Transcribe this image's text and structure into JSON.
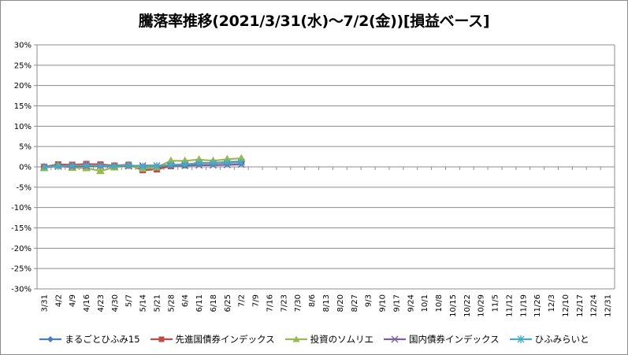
{
  "chart_data": {
    "type": "line",
    "title": "騰落率推移(2021/3/31(水)～7/2(金))[損益ベース]",
    "y_ticks": [
      "30%",
      "25%",
      "20%",
      "15%",
      "10%",
      "5%",
      "0%",
      "-5%",
      "-10%",
      "-15%",
      "-20%",
      "-25%",
      "-30%"
    ],
    "ylim": [
      -30,
      30
    ],
    "x_ticks": [
      "3/31",
      "4/2",
      "4/9",
      "4/16",
      "4/23",
      "4/30",
      "5/7",
      "5/14",
      "5/21",
      "5/28",
      "6/4",
      "6/11",
      "6/18",
      "6/25",
      "7/2",
      "7/9",
      "7/16",
      "7/23",
      "7/30",
      "8/6",
      "8/13",
      "8/20",
      "8/27",
      "9/3",
      "9/10",
      "9/17",
      "9/24",
      "10/1",
      "10/8",
      "10/15",
      "10/22",
      "10/29",
      "11/5",
      "11/12",
      "11/19",
      "11/26",
      "12/3",
      "12/10",
      "12/17",
      "12/24",
      "12/31"
    ],
    "gridlines": "horizontal",
    "legend_position": "bottom",
    "series": [
      {
        "name": "まるごとひふみ15",
        "color": "#4a7ebb",
        "marker": "diamond",
        "points": [
          [
            0,
            0.0
          ],
          [
            1,
            0.5
          ],
          [
            2,
            0.2
          ],
          [
            3,
            0.6
          ],
          [
            4,
            0.2
          ],
          [
            5,
            0.0
          ],
          [
            6,
            0.4
          ],
          [
            7,
            -0.3
          ],
          [
            8,
            -0.1
          ],
          [
            9,
            0.3
          ],
          [
            10,
            0.5
          ],
          [
            11,
            1.0
          ],
          [
            12,
            0.9
          ],
          [
            13,
            1.2
          ],
          [
            14,
            1.3
          ]
        ]
      },
      {
        "name": "先進国債券インデックス",
        "color": "#be4b48",
        "marker": "square",
        "points": [
          [
            0,
            0.0
          ],
          [
            1,
            0.6
          ],
          [
            2,
            0.5
          ],
          [
            3,
            0.7
          ],
          [
            4,
            0.6
          ],
          [
            5,
            0.3
          ],
          [
            6,
            0.5
          ],
          [
            7,
            -0.8
          ],
          [
            8,
            -0.6
          ],
          [
            9,
            0.2
          ],
          [
            10,
            0.4
          ],
          [
            11,
            0.9
          ],
          [
            12,
            1.0
          ],
          [
            13,
            1.1
          ],
          [
            14,
            1.2
          ]
        ]
      },
      {
        "name": "投資のソムリエ",
        "color": "#98b954",
        "marker": "triangle",
        "points": [
          [
            0,
            -0.3
          ],
          [
            1,
            0.3
          ],
          [
            2,
            -0.2
          ],
          [
            3,
            -0.3
          ],
          [
            4,
            -1.0
          ],
          [
            5,
            -0.1
          ],
          [
            6,
            0.3
          ],
          [
            7,
            -0.4
          ],
          [
            8,
            -0.1
          ],
          [
            9,
            1.5
          ],
          [
            10,
            1.5
          ],
          [
            11,
            1.8
          ],
          [
            12,
            1.5
          ],
          [
            13,
            1.9
          ],
          [
            14,
            2.1
          ]
        ]
      },
      {
        "name": "国内債券インデックス",
        "color": "#7d60a0",
        "marker": "x",
        "points": [
          [
            0,
            0.0
          ],
          [
            1,
            0.1
          ],
          [
            2,
            0.1
          ],
          [
            3,
            0.2
          ],
          [
            4,
            0.2
          ],
          [
            5,
            0.2
          ],
          [
            6,
            0.2
          ],
          [
            7,
            0.3
          ],
          [
            8,
            0.3
          ],
          [
            9,
            0.3
          ],
          [
            10,
            0.3
          ],
          [
            11,
            0.4
          ],
          [
            12,
            0.4
          ],
          [
            13,
            0.5
          ],
          [
            14,
            0.6
          ]
        ]
      },
      {
        "name": "ひふみらいと",
        "color": "#46aac5",
        "marker": "asterisk",
        "points": [
          [
            0,
            0.0
          ],
          [
            1,
            0.2
          ],
          [
            2,
            0.3
          ],
          [
            3,
            0.4
          ],
          [
            4,
            0.3
          ],
          [
            5,
            0.2
          ],
          [
            6,
            0.4
          ],
          [
            7,
            0.1
          ],
          [
            8,
            0.2
          ],
          [
            9,
            0.5
          ],
          [
            10,
            0.6
          ],
          [
            11,
            0.9
          ],
          [
            12,
            0.9
          ],
          [
            13,
            1.0
          ],
          [
            14,
            1.1
          ]
        ]
      }
    ]
  }
}
